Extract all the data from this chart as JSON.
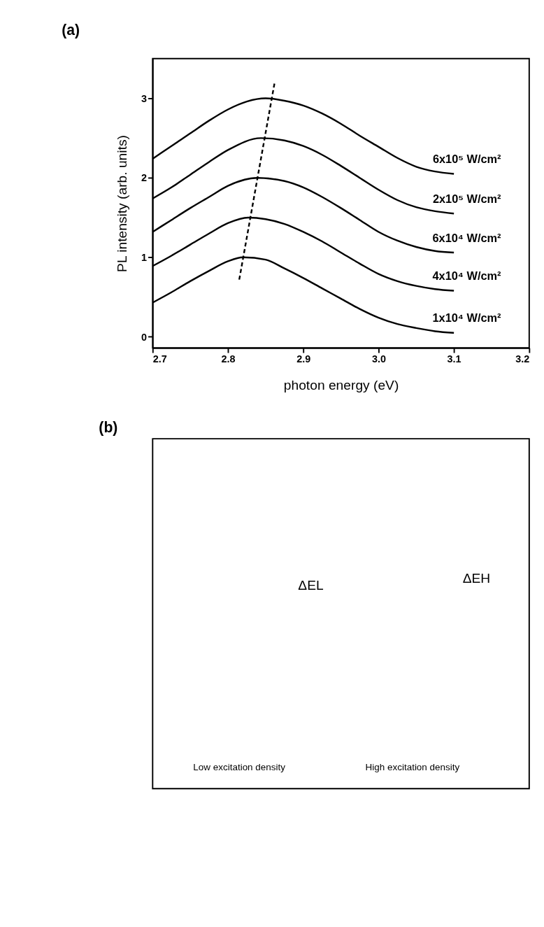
{
  "chart_data": [
    {
      "type": "line",
      "title": "(a)",
      "xlabel": "photon energy (eV)",
      "ylabel": "PL intensity (arb. units)",
      "xlim": [
        2.7,
        3.2
      ],
      "xticks": [
        {
          "value": 2.7,
          "label": "2.7"
        },
        {
          "value": 2.8,
          "label": "2.8"
        },
        {
          "value": 2.9,
          "label": "2.9"
        },
        {
          "value": 3.0,
          "label": "3.0"
        },
        {
          "value": 3.1,
          "label": "3.1"
        },
        {
          "value": 3.2,
          "label": "3.2"
        }
      ],
      "ylim": [
        -0.14,
        3.5
      ],
      "yticks": [
        0,
        1,
        2,
        3
      ],
      "grid": false,
      "legend": false,
      "marker": "none",
      "series": [
        {
          "name": "1x10⁴ W/cm²",
          "color": "#000000",
          "line_style": "solid",
          "x": [
            2.7,
            2.725,
            2.75,
            2.775,
            2.8,
            2.82,
            2.85,
            2.875,
            2.9,
            2.925,
            2.95,
            2.975,
            3.0,
            3.025,
            3.05,
            3.075,
            3.1
          ],
          "values": [
            0.43,
            0.56,
            0.7,
            0.83,
            0.95,
            1.0,
            0.97,
            0.86,
            0.74,
            0.61,
            0.48,
            0.35,
            0.24,
            0.16,
            0.11,
            0.07,
            0.05
          ]
        },
        {
          "name": "4x10⁴ W/cm²",
          "color": "#000000",
          "line_style": "solid",
          "x": [
            2.7,
            2.725,
            2.75,
            2.775,
            2.8,
            2.827,
            2.85,
            2.875,
            2.9,
            2.925,
            2.95,
            2.975,
            3.0,
            3.025,
            3.05,
            3.075,
            3.1
          ],
          "values": [
            0.89,
            1.02,
            1.16,
            1.3,
            1.43,
            1.5,
            1.48,
            1.42,
            1.32,
            1.2,
            1.06,
            0.92,
            0.79,
            0.7,
            0.64,
            0.6,
            0.58
          ]
        },
        {
          "name": "6x10⁴ W/cm²",
          "color": "#000000",
          "line_style": "solid",
          "x": [
            2.7,
            2.725,
            2.75,
            2.775,
            2.8,
            2.839,
            2.875,
            2.9,
            2.925,
            2.95,
            2.975,
            3.0,
            3.025,
            3.05,
            3.075,
            3.1
          ],
          "values": [
            1.32,
            1.47,
            1.62,
            1.76,
            1.9,
            2.0,
            1.96,
            1.88,
            1.76,
            1.62,
            1.47,
            1.32,
            1.21,
            1.13,
            1.08,
            1.06
          ]
        },
        {
          "name": "2x10⁵ W/cm²",
          "color": "#000000",
          "line_style": "solid",
          "x": [
            2.7,
            2.725,
            2.75,
            2.775,
            2.8,
            2.844,
            2.875,
            2.9,
            2.925,
            2.95,
            2.975,
            3.0,
            3.025,
            3.05,
            3.075,
            3.1
          ],
          "values": [
            1.74,
            1.88,
            2.04,
            2.2,
            2.35,
            2.5,
            2.47,
            2.4,
            2.29,
            2.15,
            2.0,
            1.85,
            1.72,
            1.63,
            1.58,
            1.55
          ]
        },
        {
          "name": "6x10⁵ W/cm²",
          "color": "#000000",
          "line_style": "solid",
          "x": [
            2.7,
            2.725,
            2.75,
            2.775,
            2.8,
            2.825,
            2.85,
            2.875,
            2.9,
            2.925,
            2.95,
            2.975,
            3.0,
            3.025,
            3.05,
            3.075,
            3.1
          ],
          "values": [
            2.24,
            2.4,
            2.56,
            2.72,
            2.86,
            2.96,
            3.0,
            2.97,
            2.91,
            2.81,
            2.68,
            2.53,
            2.39,
            2.25,
            2.14,
            2.08,
            2.05
          ]
        },
        {
          "color": "#000000",
          "line_style": "dashed",
          "x": [
            2.815,
            2.862
          ],
          "values": [
            0.72,
            3.2
          ]
        }
      ]
    },
    {
      "type": "other",
      "title": "(b)",
      "annotations": [
        "ΔEL",
        "ΔEH",
        "Low excitation density",
        "High excitation density"
      ]
    }
  ]
}
